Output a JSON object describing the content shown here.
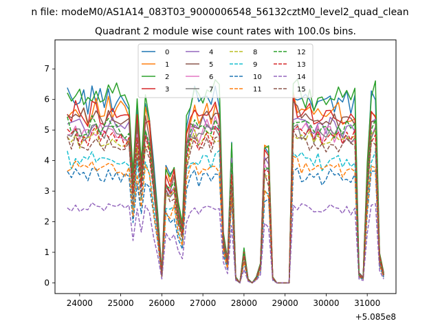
{
  "suptitle": "n file: modeM0/AS1A14_083T03_9000006548_56132cztM0_level2_quad_clean",
  "chart_data": {
    "type": "line",
    "title": "Quadrant 2 module wise count rates with 100.0s bins.",
    "xlabel": "",
    "ylabel": "",
    "x_offset_label": "+5.085e8",
    "x_offset_value": 508500000,
    "xlim": [
      23400,
      31700
    ],
    "ylim": [
      -0.35,
      7.95
    ],
    "xticks": [
      24000,
      25000,
      26000,
      27000,
      28000,
      29000,
      30000,
      31000
    ],
    "yticks": [
      0,
      1,
      2,
      3,
      4,
      5,
      6,
      7
    ],
    "legend_position": "top-center",
    "x": [
      23700,
      23800,
      23900,
      24000,
      24100,
      24200,
      24300,
      24400,
      24500,
      24600,
      24700,
      24800,
      24900,
      25000,
      25100,
      25200,
      25300,
      25400,
      25500,
      25600,
      25700,
      25800,
      25900,
      26000,
      26100,
      26200,
      26300,
      26400,
      26500,
      26600,
      26700,
      26800,
      26900,
      27000,
      27100,
      27200,
      27300,
      27400,
      27500,
      27600,
      27700,
      27800,
      27900,
      28000,
      28100,
      28200,
      28300,
      28400,
      28500,
      28600,
      28700,
      28800,
      28900,
      29000,
      29100,
      29200,
      29300,
      29400,
      29500,
      29600,
      29700,
      29800,
      29900,
      30000,
      30100,
      30200,
      30300,
      30400,
      30500,
      30600,
      30700,
      30800,
      30900,
      31000,
      31100,
      31200,
      31300,
      31400
    ],
    "base_profile": [
      0.95,
      0.92,
      0.96,
      0.93,
      0.95,
      0.9,
      0.97,
      0.96,
      0.94,
      0.92,
      0.96,
      0.93,
      0.95,
      0.94,
      0.92,
      0.93,
      0.55,
      0.88,
      0.62,
      0.92,
      0.87,
      0.6,
      0.35,
      0.05,
      0.6,
      0.55,
      0.6,
      0.4,
      0.3,
      0.8,
      0.92,
      0.95,
      0.9,
      0.94,
      0.96,
      0.92,
      0.97,
      0.95,
      0.25,
      0.12,
      0.7,
      0.03,
      0.0,
      0.17,
      0.02,
      0.0,
      0.03,
      0.1,
      0.72,
      0.7,
      0.03,
      0.0,
      0.0,
      0.0,
      0.0,
      1.0,
      0.97,
      0.95,
      0.93,
      0.96,
      0.92,
      0.94,
      0.9,
      0.93,
      0.95,
      0.92,
      0.94,
      0.91,
      0.93,
      0.9,
      0.93,
      0.05,
      0.03,
      0.6,
      0.95,
      0.96,
      0.15,
      0.05
    ],
    "series": [
      {
        "name": "0",
        "color": "#1f77b4",
        "dash": "solid",
        "level": 6.4
      },
      {
        "name": "1",
        "color": "#ff7f0e",
        "dash": "solid",
        "level": 6.0
      },
      {
        "name": "2",
        "color": "#2ca02c",
        "dash": "solid",
        "level": 6.5
      },
      {
        "name": "3",
        "color": "#d62728",
        "dash": "solid",
        "level": 5.9
      },
      {
        "name": "4",
        "color": "#9467bd",
        "dash": "solid",
        "level": 5.5
      },
      {
        "name": "5",
        "color": "#8c564b",
        "dash": "solid",
        "level": 5.7
      },
      {
        "name": "6",
        "color": "#e377c2",
        "dash": "solid",
        "level": 5.3
      },
      {
        "name": "7",
        "color": "#7f7f7f",
        "dash": "solid",
        "level": 5.2
      },
      {
        "name": "8",
        "color": "#bcbd22",
        "dash": "dashed",
        "level": 5.0
      },
      {
        "name": "9",
        "color": "#17becf",
        "dash": "dashed",
        "level": 4.3
      },
      {
        "name": "10",
        "color": "#1f77b4",
        "dash": "dashed",
        "level": 3.7
      },
      {
        "name": "11",
        "color": "#ff7f0e",
        "dash": "dashed",
        "level": 4.0
      },
      {
        "name": "12",
        "color": "#2ca02c",
        "dash": "dashed",
        "level": 5.4
      },
      {
        "name": "13",
        "color": "#d62728",
        "dash": "dashed",
        "level": 5.1
      },
      {
        "name": "14",
        "color": "#9467bd",
        "dash": "dashed",
        "level": 2.6
      },
      {
        "name": "15",
        "color": "#8c564b",
        "dash": "dashed",
        "level": 4.8
      }
    ]
  }
}
